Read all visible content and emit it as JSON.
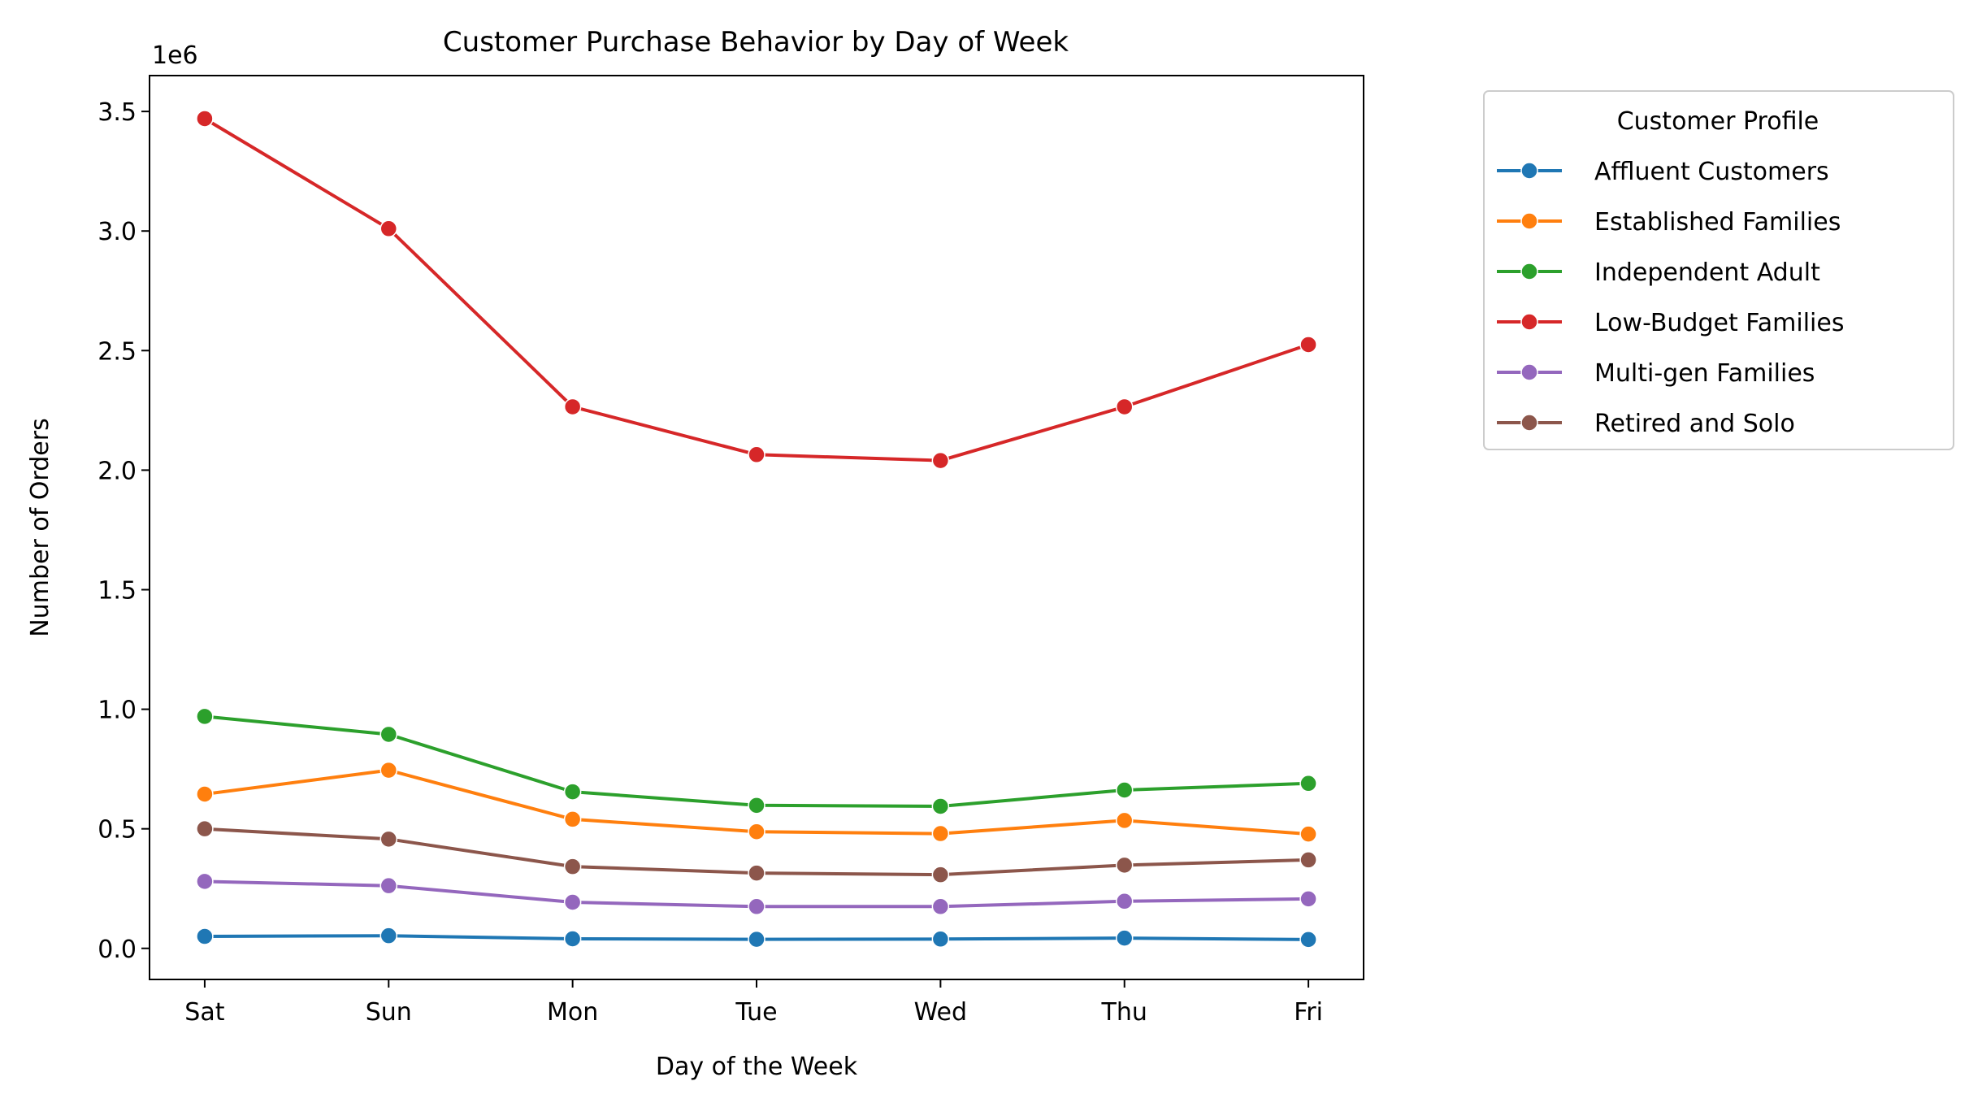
{
  "chart_data": {
    "type": "line",
    "title": "Customer Purchase Behavior by Day of Week",
    "xlabel": "Day of the Week",
    "ylabel": "Number of Orders",
    "y_offset_label": "1e6",
    "y_scale_factor": 1000000,
    "categories": [
      "Sat",
      "Sun",
      "Mon",
      "Tue",
      "Wed",
      "Thu",
      "Fri"
    ],
    "ylim": [
      -130000,
      3650000
    ],
    "yticks": [
      0,
      500000,
      1000000,
      1500000,
      2000000,
      2500000,
      3000000,
      3500000
    ],
    "ytick_labels": [
      "0.0",
      "0.5",
      "1.0",
      "1.5",
      "2.0",
      "2.5",
      "3.0",
      "3.5"
    ],
    "grid": false,
    "legend": {
      "title": "Customer Profile",
      "placement": "outside-upper-right"
    },
    "series": [
      {
        "name": "Affluent Customers",
        "color": "#1f77b4",
        "values": [
          50000,
          53000,
          40000,
          38000,
          39000,
          43000,
          37000
        ]
      },
      {
        "name": "Established Families",
        "color": "#ff7f0e",
        "values": [
          645000,
          745000,
          540000,
          488000,
          480000,
          535000,
          478000
        ]
      },
      {
        "name": "Independent Adult",
        "color": "#2ca02c",
        "values": [
          970000,
          895000,
          655000,
          598000,
          594000,
          662000,
          690000
        ]
      },
      {
        "name": "Low-Budget Families",
        "color": "#d62728",
        "values": [
          3470000,
          3010000,
          2265000,
          2065000,
          2040000,
          2265000,
          2525000
        ]
      },
      {
        "name": "Multi-gen Families",
        "color": "#9467bd",
        "values": [
          280000,
          262000,
          193000,
          175000,
          175000,
          197000,
          207000
        ]
      },
      {
        "name": "Retired and Solo",
        "color": "#8c564b",
        "values": [
          500000,
          457000,
          342000,
          315000,
          308000,
          348000,
          370000
        ]
      }
    ]
  }
}
